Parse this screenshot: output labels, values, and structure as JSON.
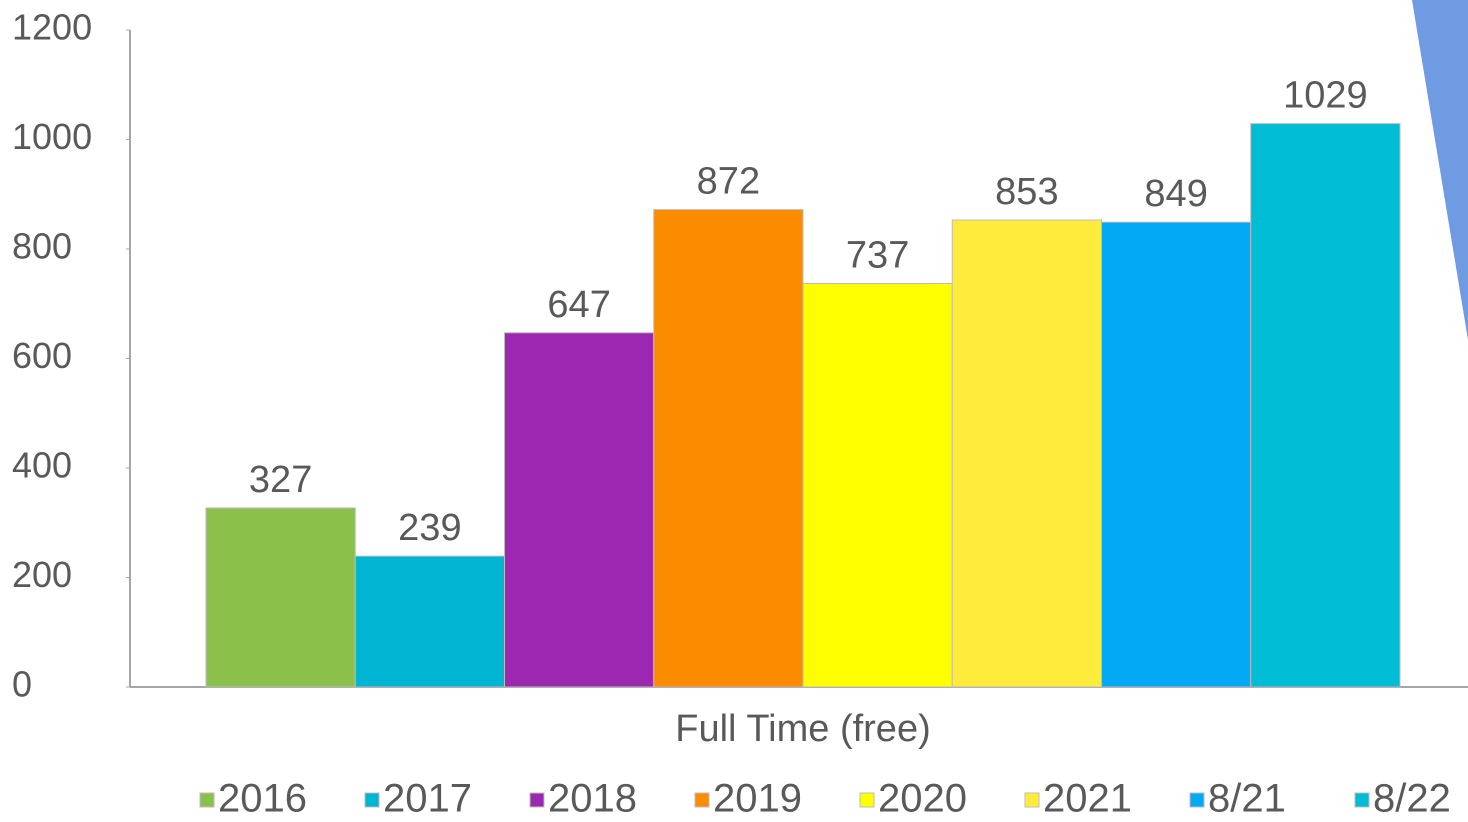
{
  "chart_data": {
    "type": "bar",
    "x_label": null,
    "categories": [
      "Full Time (free)"
    ],
    "series": [
      {
        "name": "2016",
        "color": "#8bc04b",
        "values": [
          327
        ]
      },
      {
        "name": "2017",
        "color": "#00b5d1",
        "values": [
          239
        ]
      },
      {
        "name": "2018",
        "color": "#9c27b0",
        "values": [
          647
        ]
      },
      {
        "name": "2019",
        "color": "#fb8c00",
        "values": [
          872
        ]
      },
      {
        "name": "2020",
        "color": "#ffff00",
        "values": [
          737
        ]
      },
      {
        "name": "2021",
        "color": "#ffeb3b",
        "values": [
          853
        ]
      },
      {
        "name": "8/21",
        "color": "#03a9f4",
        "values": [
          849
        ]
      },
      {
        "name": "8/22",
        "color": "#00bcd4",
        "values": [
          1029
        ]
      }
    ],
    "ylim": [
      0,
      1200
    ],
    "yticks": [
      0,
      200,
      400,
      600,
      800,
      1000,
      1200
    ],
    "grid": false,
    "legend": "bottom",
    "data_labels": true
  }
}
